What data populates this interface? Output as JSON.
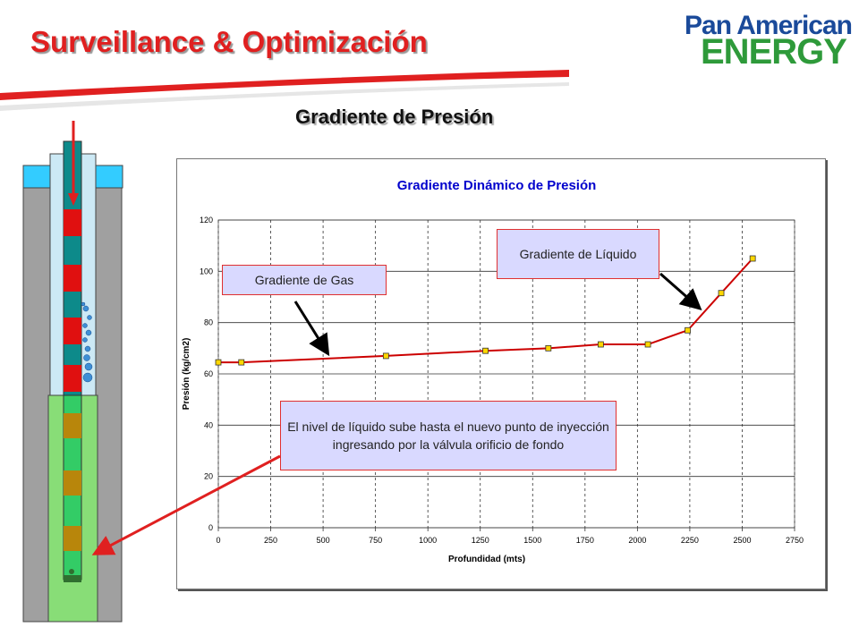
{
  "header": {
    "title": "Surveillance & Optimización",
    "subtitle": "Gradiente de Presión"
  },
  "logo": {
    "line1": "Pan American",
    "line2": "ENERGY"
  },
  "callouts": {
    "gas": "Gradiente de Gas",
    "liquid": "Gradiente de Líquido",
    "level": "El nivel de líquido sube hasta el nuevo punto de inyección ingresando por la válvula orificio de fondo"
  },
  "colors": {
    "accent_red": "#e02020",
    "plot_bg": "#ffffff",
    "line": "#cc0000",
    "marker": "#ffd700"
  },
  "chart_data": {
    "type": "line",
    "title": "Gradiente Dinámico de Presión",
    "xlabel": "Profundidad  (mts)",
    "ylabel": "Presión (kg/cm2)",
    "xlim": [
      0,
      2750
    ],
    "ylim": [
      0,
      120
    ],
    "xticks": [
      "0",
      "250",
      "500",
      "750",
      "1000",
      "1250",
      "1500",
      "1750",
      "2000",
      "2250",
      "2500",
      "2750"
    ],
    "yticks": [
      "0",
      "20",
      "40",
      "60",
      "80",
      "100",
      "120"
    ],
    "grid": true,
    "x": [
      0,
      110,
      800,
      1275,
      1575,
      1825,
      2050,
      2240,
      2400,
      2550
    ],
    "y": [
      64.5,
      64.5,
      67,
      69,
      70,
      71.5,
      71.5,
      77,
      91.5,
      105
    ]
  }
}
